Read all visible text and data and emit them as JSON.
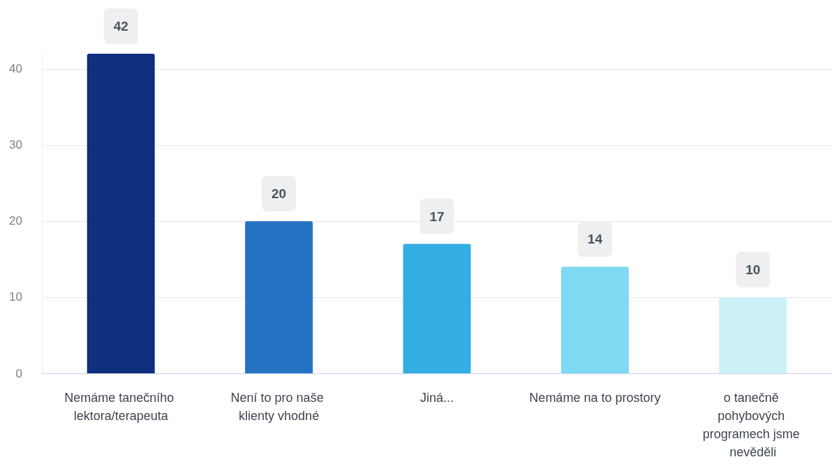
{
  "chart_data": {
    "type": "bar",
    "categories": [
      "Nemáme tanečního lektora/terapeuta",
      "Není to pro naše klienty vhodné",
      "Jiná...",
      "Nemáme na to prostory",
      "o tanečně pohybových programech jsme nevěděli"
    ],
    "values": [
      42,
      20,
      17,
      14,
      10
    ],
    "colors": [
      "#0f2f7f",
      "#2673c3",
      "#33aee3",
      "#7fd9f2",
      "#cdf1f9"
    ],
    "ylim": [
      0,
      42
    ],
    "yticks": [
      0,
      10,
      20,
      30,
      40
    ],
    "grid": "y",
    "data_labels": true
  }
}
